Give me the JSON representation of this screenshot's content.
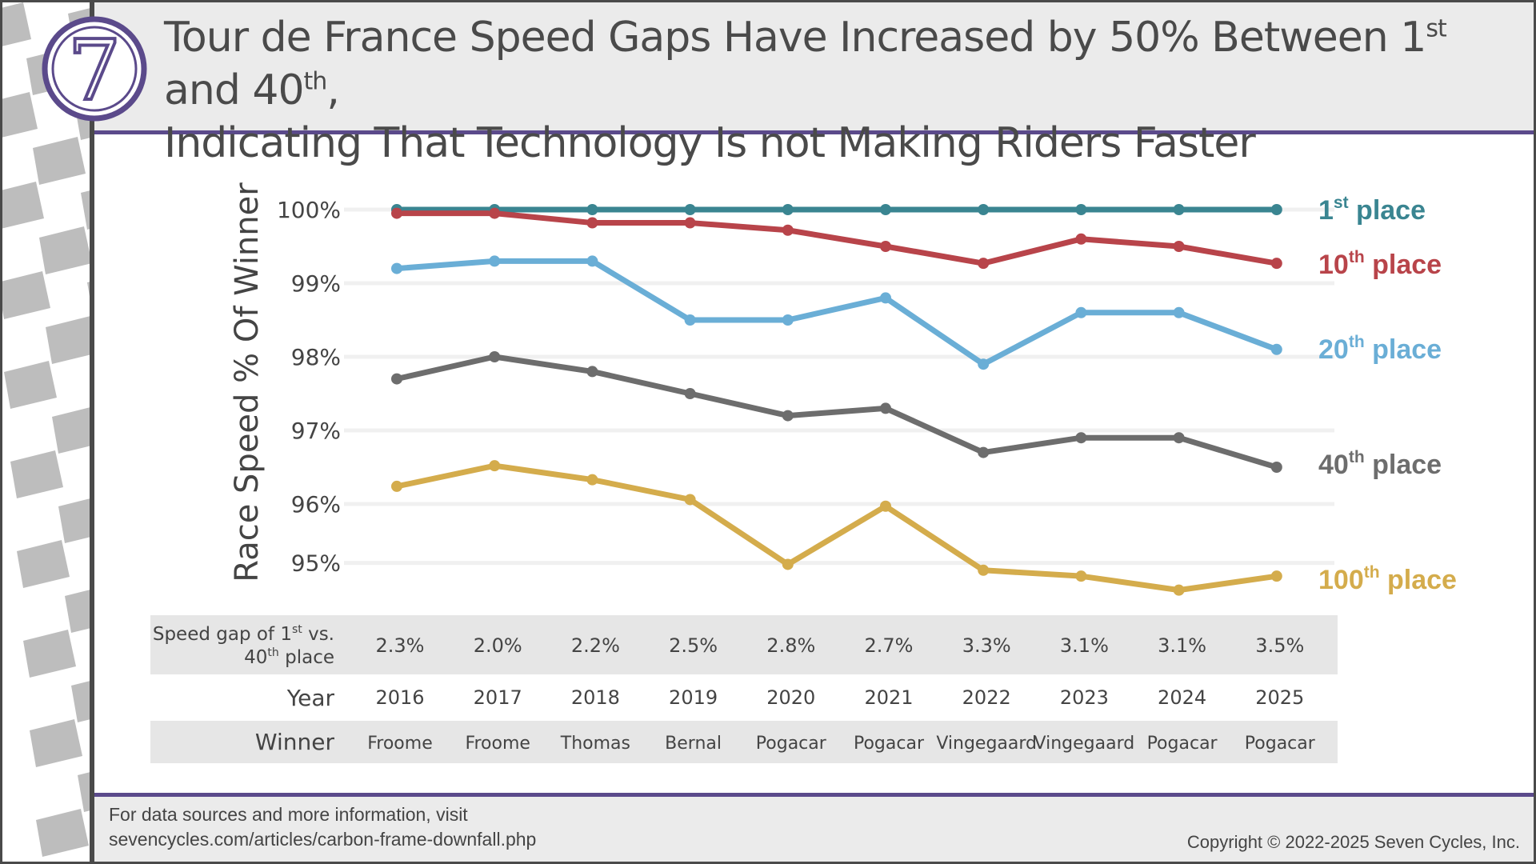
{
  "header": {
    "title_line1": "Tour de France Speed Gaps Have Increased by 50% Between 1",
    "title_sup1": "st",
    "title_and": " and 40",
    "title_sup2": "th",
    "title_comma": ",",
    "title_line2": "Indicating That Technology Is not Making Riders Faster",
    "logo_number": "7"
  },
  "footer": {
    "source_line1": "For data sources and more information, visit",
    "source_line2": "sevencycles.com/articles/carbon-frame-downfall.php",
    "copyright": "Copyright © 2022-2025 Seven Cycles, Inc."
  },
  "colors": {
    "first": "#3a8591",
    "tenth": "#b8444a",
    "twentieth": "#6aaed6",
    "fortieth": "#6d6d6d",
    "hundredth": "#d4ac4c",
    "accent": "#5b4a8b",
    "table_bg": "#e6e6e6",
    "grid": "#f0f0f0"
  },
  "chart_data": {
    "type": "line",
    "title": "Tour de France Speed Gaps Have Increased by 50% Between 1st and 40th, Indicating That Technology Is not Making Riders Faster",
    "xlabel": "Year",
    "ylabel": "Race Speed % Of Winner",
    "ylim": [
      94.6,
      100
    ],
    "grid": true,
    "yticks": [
      {
        "value": 100,
        "label": "100%"
      },
      {
        "value": 99,
        "label": "99%"
      },
      {
        "value": 98,
        "label": "98%"
      },
      {
        "value": 97,
        "label": "97%"
      },
      {
        "value": 96,
        "label": "96%"
      },
      {
        "value": 95.2,
        "label": "95%"
      }
    ],
    "categories": [
      "2016",
      "2017",
      "2018",
      "2019",
      "2020",
      "2021",
      "2022",
      "2023",
      "2024",
      "2025"
    ],
    "series": [
      {
        "name": "1st place",
        "label_main": "1",
        "label_sup": "st",
        "label_rest": " place",
        "color_key": "first",
        "values": [
          100,
          100,
          100,
          100,
          100,
          100,
          100,
          100,
          100,
          100
        ]
      },
      {
        "name": "10th place",
        "label_main": "10",
        "label_sup": "th",
        "label_rest": " place",
        "color_key": "tenth",
        "values": [
          99.95,
          99.95,
          99.82,
          99.82,
          99.72,
          99.5,
          99.27,
          99.6,
          99.5,
          99.27
        ]
      },
      {
        "name": "20th place",
        "label_main": "20",
        "label_sup": "th",
        "label_rest": " place",
        "color_key": "twentieth",
        "values": [
          99.2,
          99.3,
          99.3,
          98.5,
          98.5,
          98.8,
          97.9,
          98.6,
          98.6,
          98.1
        ]
      },
      {
        "name": "40th place",
        "label_main": "40",
        "label_sup": "th",
        "label_rest": " place",
        "color_key": "fortieth",
        "values": [
          97.7,
          98.0,
          97.8,
          97.5,
          97.2,
          97.3,
          96.7,
          96.9,
          96.9,
          96.5
        ]
      },
      {
        "name": "100th place",
        "label_main": "100",
        "label_sup": "th",
        "label_rest": " place",
        "color_key": "hundredth",
        "values": [
          96.24,
          96.52,
          96.33,
          96.06,
          95.18,
          95.97,
          95.1,
          95.02,
          94.83,
          95.02
        ]
      }
    ],
    "table": {
      "gap_label_a": "Speed gap of 1",
      "gap_label_sup1": "st",
      "gap_label_b": " vs.",
      "gap_label_c": "40",
      "gap_label_sup2": "th",
      "gap_label_d": " place",
      "gaps": [
        "2.3%",
        "2.0%",
        "2.2%",
        "2.5%",
        "2.8%",
        "2.7%",
        "3.3%",
        "3.1%",
        "3.1%",
        "3.5%"
      ],
      "year_label": "Year",
      "winner_label": "Winner",
      "winners": [
        "Froome",
        "Froome",
        "Thomas",
        "Bernal",
        "Pogacar",
        "Pogacar",
        "Vingegaard",
        "Vingegaard",
        "Pogacar",
        "Pogacar"
      ]
    }
  }
}
